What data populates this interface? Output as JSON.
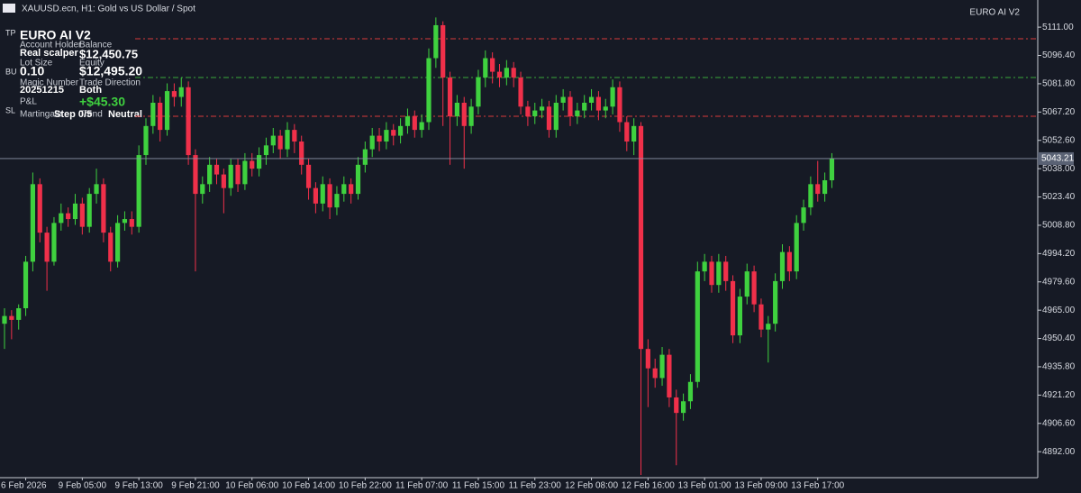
{
  "chart_data": {
    "type": "candlestick",
    "title": "XAUUSD.ecn, H1:  Gold vs US Dollar / Spot",
    "indicator": "EURO AI V2",
    "up_color": "#3fd13f",
    "down_color": "#f0304a",
    "ylim": [
      4878.6,
      5125
    ],
    "yticks": [
      {
        "value": 5111,
        "label": "5111.00"
      },
      {
        "value": 5096.4,
        "label": "5096.40"
      },
      {
        "value": 5081.8,
        "label": "5081.80"
      },
      {
        "value": 5067.2,
        "label": "5067.20"
      },
      {
        "value": 5052.6,
        "label": "5052.60"
      },
      {
        "value": 5038,
        "label": "5038.00"
      },
      {
        "value": 5023.4,
        "label": "5023.40"
      },
      {
        "value": 5008.8,
        "label": "5008.80"
      },
      {
        "value": 4994.2,
        "label": "4994.20"
      },
      {
        "value": 4979.6,
        "label": "4979.60"
      },
      {
        "value": 4965,
        "label": "4965.00"
      },
      {
        "value": 4950.4,
        "label": "4950.40"
      },
      {
        "value": 4935.8,
        "label": "4935.80"
      },
      {
        "value": 4921.2,
        "label": "4921.20"
      },
      {
        "value": 4906.6,
        "label": "4906.60"
      },
      {
        "value": 4892,
        "label": "4892.00"
      }
    ],
    "levels": [
      {
        "name": "TP",
        "value": 5105,
        "color": "#d83a3a"
      },
      {
        "name": "BU",
        "value": 5085,
        "color": "#3aa83a"
      },
      {
        "name": "SL",
        "value": 5065,
        "color": "#d83a3a"
      }
    ],
    "categories": [
      null,
      null,
      null,
      "6 Feb 2026",
      null,
      null,
      null,
      null,
      null,
      null,
      null,
      "9 Feb 05:00",
      null,
      null,
      null,
      null,
      null,
      null,
      null,
      "9 Feb 13:00",
      null,
      null,
      null,
      null,
      null,
      null,
      null,
      "9 Feb 21:00",
      null,
      null,
      null,
      null,
      null,
      null,
      null,
      "10 Feb 06:00",
      null,
      null,
      null,
      null,
      null,
      null,
      null,
      "10 Feb 14:00",
      null,
      null,
      null,
      null,
      null,
      null,
      null,
      "10 Feb 22:00",
      null,
      null,
      null,
      null,
      null,
      null,
      null,
      "11 Feb 07:00",
      null,
      null,
      null,
      null,
      null,
      null,
      null,
      "11 Feb 15:00",
      null,
      null,
      null,
      null,
      null,
      null,
      null,
      "11 Feb 23:00",
      null,
      null,
      null,
      null,
      null,
      null,
      null,
      "12 Feb 08:00",
      null,
      null,
      null,
      null,
      null,
      null,
      null,
      "12 Feb 16:00",
      null,
      null,
      null,
      null,
      null,
      null,
      null,
      "13 Feb 01:00",
      null,
      null,
      null,
      null,
      null,
      null,
      null,
      "13 Feb 09:00",
      null,
      null,
      null,
      null,
      null,
      null,
      null,
      "13 Feb 17:00",
      null,
      null
    ],
    "open": [
      4958,
      4962,
      4960,
      4966,
      4990,
      5030,
      5005,
      4990,
      5010,
      5015,
      5012,
      5020,
      5008,
      5025,
      5030,
      5005,
      4990,
      5010,
      5012,
      5008,
      5045,
      5060,
      5072,
      5058,
      5078,
      5075,
      5080,
      5045,
      5025,
      5030,
      5040,
      5035,
      5028,
      5040,
      5030,
      5042,
      5038,
      5045,
      5050,
      5055,
      5048,
      5058,
      5052,
      5040,
      5028,
      5020,
      5030,
      5018,
      5025,
      5030,
      5025,
      5040,
      5048,
      5055,
      5052,
      5058,
      5055,
      5060,
      5065,
      5058,
      5062,
      5095,
      5112,
      5085,
      5065,
      5072,
      5060,
      5070,
      5085,
      5095,
      5088,
      5085,
      5090,
      5085,
      5070,
      5065,
      5068,
      5070,
      5058,
      5072,
      5075,
      5065,
      5068,
      5072,
      5075,
      5068,
      5070,
      5080,
      5062,
      5052,
      5060,
      4945,
      4935,
      4930,
      4942,
      4920,
      4912,
      4918,
      4928,
      4985,
      4990,
      4978,
      4990,
      4980,
      4952,
      4972,
      4985,
      4968,
      4955,
      4958,
      4980,
      4995,
      4985,
      5010,
      5018,
      5030,
      5025,
      5032
    ],
    "high": [
      4966,
      4965,
      4968,
      4993,
      5036,
      5033,
      5008,
      5013,
      5020,
      5018,
      5025,
      5023,
      5028,
      5038,
      5033,
      5008,
      5014,
      5016,
      5016,
      5050,
      5064,
      5076,
      5075,
      5082,
      5082,
      5085,
      5083,
      5048,
      5034,
      5044,
      5043,
      5038,
      5043,
      5043,
      5046,
      5046,
      5049,
      5054,
      5059,
      5058,
      5062,
      5061,
      5055,
      5043,
      5031,
      5034,
      5033,
      5029,
      5034,
      5033,
      5044,
      5052,
      5059,
      5059,
      5062,
      5061,
      5064,
      5069,
      5068,
      5066,
      5100,
      5116,
      5114,
      5088,
      5076,
      5075,
      5074,
      5089,
      5099,
      5098,
      5092,
      5094,
      5093,
      5088,
      5073,
      5072,
      5074,
      5073,
      5076,
      5079,
      5078,
      5072,
      5076,
      5079,
      5078,
      5074,
      5084,
      5083,
      5065,
      5064,
      5062,
      4950,
      4940,
      4946,
      4945,
      4924,
      4922,
      4932,
      4990,
      4994,
      4993,
      4994,
      4993,
      4983,
      4976,
      4989,
      4988,
      4971,
      4962,
      4984,
      4999,
      4998,
      5014,
      5022,
      5034,
      5042,
      5036,
      5046
    ],
    "low": [
      4945,
      4950,
      4955,
      4962,
      4985,
      5000,
      4975,
      4988,
      5006,
      5008,
      5009,
      5004,
      5005,
      5020,
      5000,
      4985,
      4987,
      5006,
      5004,
      5005,
      5040,
      5056,
      5052,
      5055,
      5070,
      5070,
      5040,
      4985,
      5020,
      5026,
      5030,
      5015,
      5024,
      5026,
      5027,
      5034,
      5034,
      5040,
      5046,
      5043,
      5044,
      5046,
      5035,
      5022,
      5015,
      5016,
      5012,
      5014,
      5021,
      5020,
      5022,
      5036,
      5044,
      5047,
      5048,
      5050,
      5051,
      5056,
      5054,
      5054,
      5058,
      5090,
      5060,
      5040,
      5060,
      5038,
      5056,
      5066,
      5080,
      5082,
      5080,
      5081,
      5080,
      5066,
      5060,
      5061,
      5064,
      5054,
      5054,
      5068,
      5060,
      5061,
      5064,
      5068,
      5063,
      5064,
      5066,
      5057,
      5047,
      5045,
      4880,
      4915,
      4925,
      4926,
      4915,
      4885,
      4908,
      4914,
      4925,
      4980,
      4974,
      4974,
      4975,
      4948,
      4948,
      4968,
      4964,
      4951,
      4938,
      4954,
      4976,
      4980,
      4981,
      5006,
      5014,
      5021,
      5021,
      5028
    ],
    "close": [
      4962,
      4960,
      4966,
      4990,
      5030,
      5005,
      4990,
      5010,
      5015,
      5012,
      5020,
      5008,
      5025,
      5030,
      5005,
      4990,
      5010,
      5012,
      5008,
      5045,
      5060,
      5072,
      5058,
      5078,
      5075,
      5080,
      5045,
      5025,
      5030,
      5040,
      5035,
      5028,
      5040,
      5030,
      5042,
      5038,
      5045,
      5050,
      5055,
      5048,
      5058,
      5052,
      5040,
      5028,
      5020,
      5030,
      5018,
      5025,
      5030,
      5025,
      5040,
      5048,
      5055,
      5052,
      5058,
      5055,
      5060,
      5065,
      5058,
      5062,
      5095,
      5112,
      5085,
      5065,
      5072,
      5060,
      5070,
      5085,
      5095,
      5088,
      5085,
      5090,
      5085,
      5070,
      5065,
      5068,
      5070,
      5058,
      5072,
      5075,
      5065,
      5068,
      5072,
      5075,
      5068,
      5070,
      5080,
      5062,
      5052,
      5060,
      4945,
      4935,
      4930,
      4942,
      4920,
      4912,
      4918,
      4928,
      4985,
      4990,
      4978,
      4990,
      4980,
      4952,
      4972,
      4985,
      4968,
      4955,
      4958,
      4980,
      4995,
      4985,
      5010,
      5018,
      5030,
      5025,
      5032,
      5043.21
    ]
  },
  "panel": {
    "title": "EURO AI V2",
    "items": [
      "Account Holder",
      "Balance",
      "Real scalper",
      "$12,450.75",
      "Lot Size",
      "Equity",
      "0.10",
      "$12,495.20",
      "Magic Number",
      "Trade Direction",
      "20251215",
      "Both",
      "P&L",
      "+$45.30",
      "Martingale",
      "Trend",
      "Step 0/5",
      "Neutral"
    ]
  }
}
